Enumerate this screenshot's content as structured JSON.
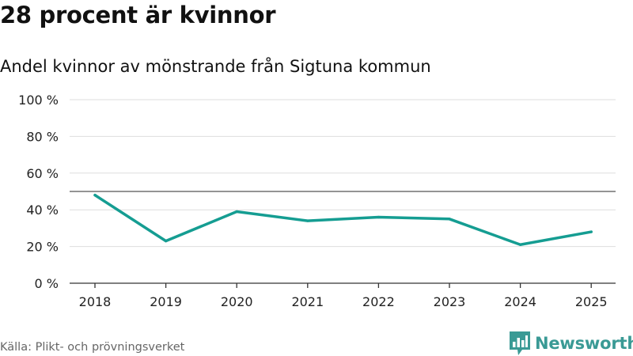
{
  "header": {
    "title": "28 procent är kvinnor",
    "subtitle": "Andel kvinnor av mönstrande från Sigtuna kommun"
  },
  "footer": {
    "source": "Källa: Plikt- och prövningsverket",
    "brand": "Newsworthy"
  },
  "colors": {
    "line": "#159d92",
    "reference_line": "#555555",
    "grid": "#dddddd",
    "brand": "#3a9a95"
  },
  "icons": {
    "brand_logo": "newsworthy-bar-chart-logo"
  },
  "chart_data": {
    "type": "line",
    "categories": [
      "2018",
      "2019",
      "2020",
      "2021",
      "2022",
      "2023",
      "2024",
      "2025"
    ],
    "series": [
      {
        "values": [
          48,
          23,
          39,
          34,
          36,
          35,
          21,
          28
        ]
      }
    ],
    "reference_line": 50,
    "y_ticks": [
      0,
      20,
      40,
      60,
      80,
      100
    ],
    "y_tick_labels": [
      "0 %",
      "20 %",
      "40 %",
      "60 %",
      "80 %",
      "100 %"
    ],
    "ylim": [
      0,
      100
    ],
    "grid": true,
    "legend": "none"
  }
}
